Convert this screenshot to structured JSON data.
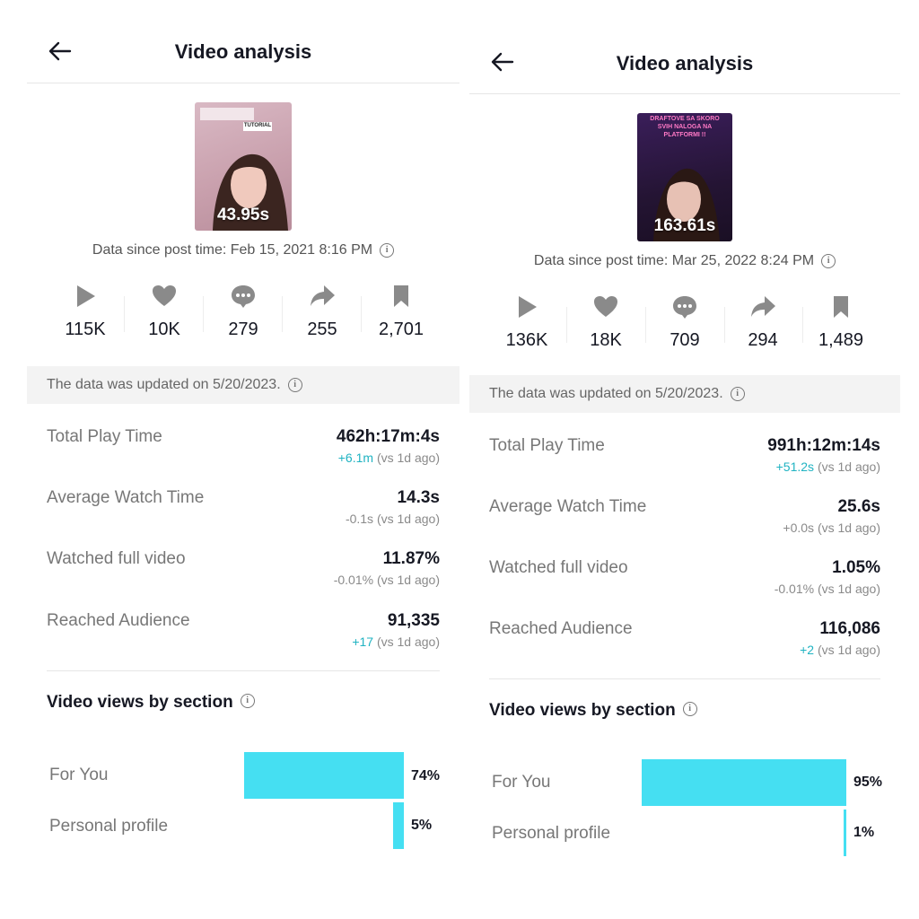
{
  "panels": [
    {
      "title": "Video analysis",
      "thumbnail": {
        "duration": "43.95s",
        "overlay_text": "TUTORIAL"
      },
      "data_since": "Data since post time: Feb 15, 2021 8:16 PM",
      "stats": [
        {
          "icon": "play-icon",
          "value": "115K"
        },
        {
          "icon": "heart-icon",
          "value": "10K"
        },
        {
          "icon": "comment-icon",
          "value": "279"
        },
        {
          "icon": "share-icon",
          "value": "255"
        },
        {
          "icon": "bookmark-icon",
          "value": "2,701"
        }
      ],
      "updated_note": "The data was updated on 5/20/2023.",
      "metrics": [
        {
          "label": "Total Play Time",
          "value": "462h:17m:4s",
          "delta_value": "+6.1m",
          "delta_suffix": " (vs 1d ago)",
          "delta_positive": true
        },
        {
          "label": "Average Watch Time",
          "value": "14.3s",
          "delta_value": "-0.1s",
          "delta_suffix": " (vs 1d ago)",
          "delta_positive": false
        },
        {
          "label": "Watched full video",
          "value": "11.87%",
          "delta_value": "-0.01%",
          "delta_suffix": " (vs 1d ago)",
          "delta_positive": false
        },
        {
          "label": "Reached Audience",
          "value": "91,335",
          "delta_value": "+17",
          "delta_suffix": " (vs 1d ago)",
          "delta_positive": true
        }
      ],
      "views_section_title": "Video views by section",
      "chart_data": {
        "type": "bar",
        "categories": [
          "For You",
          "Personal profile"
        ],
        "values": [
          74,
          5
        ],
        "labels": [
          "74%",
          "5%"
        ]
      }
    },
    {
      "title": "Video analysis",
      "thumbnail": {
        "duration": "163.61s",
        "overlay_text": "DRAFTOVE SA SKORO SVIH NALOGA NA PLATFORMI !!"
      },
      "data_since": "Data since post time: Mar 25, 2022 8:24 PM",
      "stats": [
        {
          "icon": "play-icon",
          "value": "136K"
        },
        {
          "icon": "heart-icon",
          "value": "18K"
        },
        {
          "icon": "comment-icon",
          "value": "709"
        },
        {
          "icon": "share-icon",
          "value": "294"
        },
        {
          "icon": "bookmark-icon",
          "value": "1,489"
        }
      ],
      "updated_note": "The data was updated on 5/20/2023.",
      "metrics": [
        {
          "label": "Total Play Time",
          "value": "991h:12m:14s",
          "delta_value": "+51.2s",
          "delta_suffix": " (vs 1d ago)",
          "delta_positive": true
        },
        {
          "label": "Average Watch Time",
          "value": "25.6s",
          "delta_value": "+0.0s",
          "delta_suffix": " (vs 1d ago)",
          "delta_positive": false
        },
        {
          "label": "Watched full video",
          "value": "1.05%",
          "delta_value": "-0.01%",
          "delta_suffix": " (vs 1d ago)",
          "delta_positive": false
        },
        {
          "label": "Reached Audience",
          "value": "116,086",
          "delta_value": "+2",
          "delta_suffix": " (vs 1d ago)",
          "delta_positive": true
        }
      ],
      "views_section_title": "Video views by section",
      "chart_data": {
        "type": "bar",
        "categories": [
          "For You",
          "Personal profile"
        ],
        "values": [
          95,
          1
        ],
        "labels": [
          "95%",
          "1%"
        ]
      }
    }
  ],
  "colors": {
    "bar": "#45dff2",
    "positive_delta": "#20b3c2",
    "icon_gray": "#8a8a8a"
  }
}
